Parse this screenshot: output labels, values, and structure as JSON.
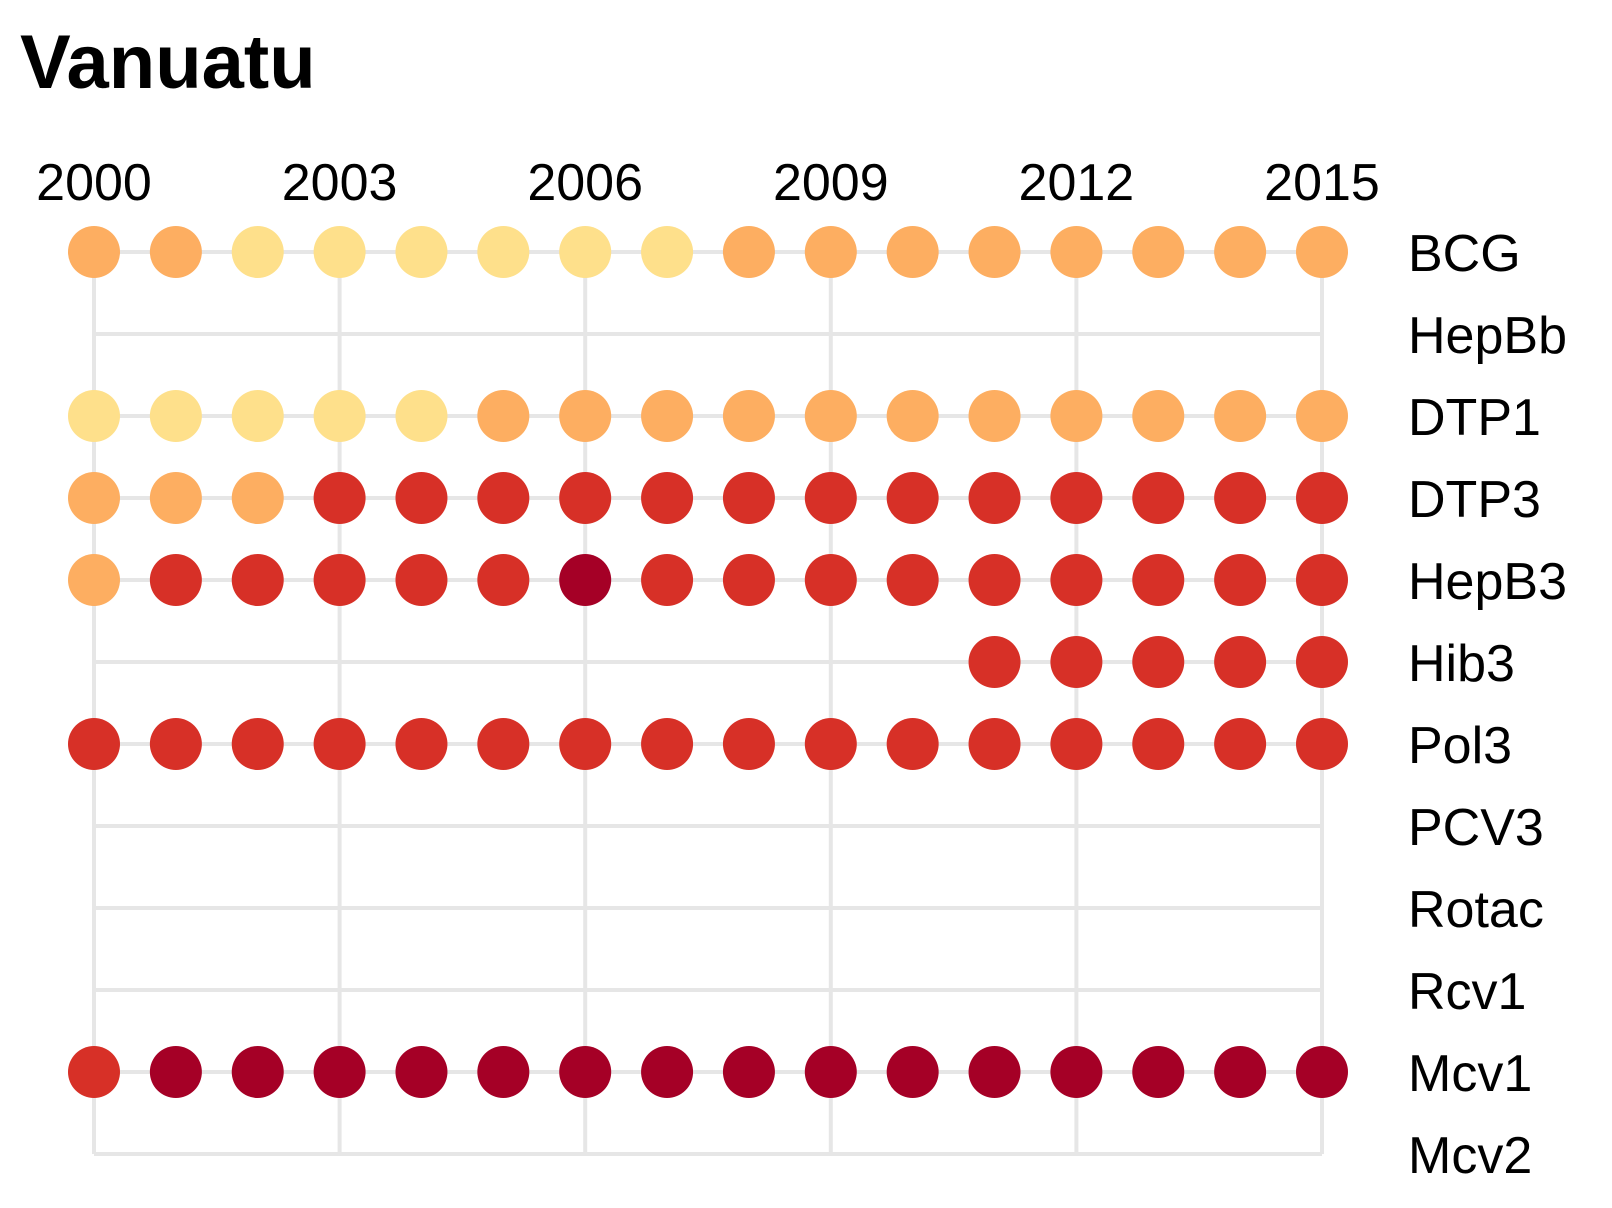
{
  "chart_data": {
    "type": "scatter",
    "title": "Vanuatu",
    "x": [
      2000,
      2001,
      2002,
      2003,
      2004,
      2005,
      2006,
      2007,
      2008,
      2009,
      2010,
      2011,
      2012,
      2013,
      2014,
      2015
    ],
    "x_tick_labels": [
      "2000",
      "2003",
      "2006",
      "2009",
      "2012",
      "2015"
    ],
    "xlim": [
      2000,
      2015
    ],
    "categories": [
      "BCG",
      "HepBb",
      "DTP1",
      "DTP3",
      "HepB3",
      "Hib3",
      "Pol3",
      "PCV3",
      "Rotac",
      "Rcv1",
      "Mcv1",
      "Mcv2"
    ],
    "grid": true,
    "legend": "none",
    "color_scale": {
      "1": "#fee08b",
      "2": "#fdae61",
      "3": "#d73027",
      "4": "#a50026"
    },
    "series": [
      {
        "name": "BCG",
        "values": [
          2,
          2,
          1,
          1,
          1,
          1,
          1,
          1,
          2,
          2,
          2,
          2,
          2,
          2,
          2,
          2
        ]
      },
      {
        "name": "HepBb",
        "values": [
          null,
          null,
          null,
          null,
          null,
          null,
          null,
          null,
          null,
          null,
          null,
          null,
          null,
          null,
          null,
          null
        ]
      },
      {
        "name": "DTP1",
        "values": [
          1,
          1,
          1,
          1,
          1,
          2,
          2,
          2,
          2,
          2,
          2,
          2,
          2,
          2,
          2,
          2
        ]
      },
      {
        "name": "DTP3",
        "values": [
          2,
          2,
          2,
          3,
          3,
          3,
          3,
          3,
          3,
          3,
          3,
          3,
          3,
          3,
          3,
          3
        ]
      },
      {
        "name": "HepB3",
        "values": [
          2,
          3,
          3,
          3,
          3,
          3,
          4,
          3,
          3,
          3,
          3,
          3,
          3,
          3,
          3,
          3
        ]
      },
      {
        "name": "Hib3",
        "values": [
          null,
          null,
          null,
          null,
          null,
          null,
          null,
          null,
          null,
          null,
          null,
          3,
          3,
          3,
          3,
          3
        ]
      },
      {
        "name": "Pol3",
        "values": [
          3,
          3,
          3,
          3,
          3,
          3,
          3,
          3,
          3,
          3,
          3,
          3,
          3,
          3,
          3,
          3
        ]
      },
      {
        "name": "PCV3",
        "values": [
          null,
          null,
          null,
          null,
          null,
          null,
          null,
          null,
          null,
          null,
          null,
          null,
          null,
          null,
          null,
          null
        ]
      },
      {
        "name": "Rotac",
        "values": [
          null,
          null,
          null,
          null,
          null,
          null,
          null,
          null,
          null,
          null,
          null,
          null,
          null,
          null,
          null,
          null
        ]
      },
      {
        "name": "Rcv1",
        "values": [
          null,
          null,
          null,
          null,
          null,
          null,
          null,
          null,
          null,
          null,
          null,
          null,
          null,
          null,
          null,
          null
        ]
      },
      {
        "name": "Mcv1",
        "values": [
          3,
          4,
          4,
          4,
          4,
          4,
          4,
          4,
          4,
          4,
          4,
          4,
          4,
          4,
          4,
          4
        ]
      },
      {
        "name": "Mcv2",
        "values": [
          null,
          null,
          null,
          null,
          null,
          null,
          null,
          null,
          null,
          null,
          null,
          null,
          null,
          null,
          null,
          null
        ]
      }
    ]
  }
}
